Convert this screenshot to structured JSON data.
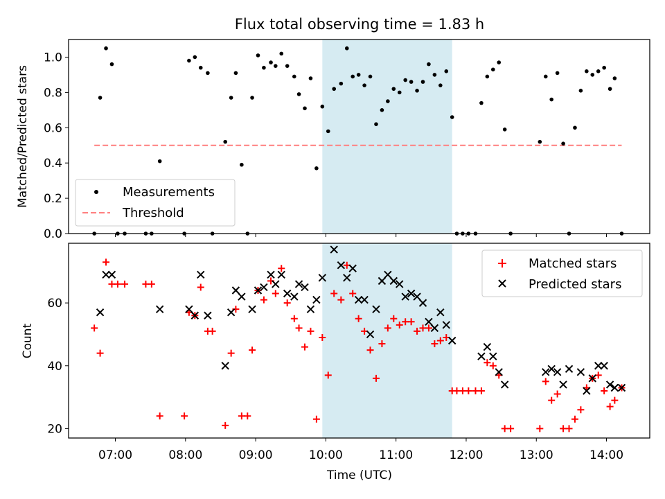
{
  "figure": {
    "title": "Flux total observing time = 1.83 h",
    "xlabel": "Time (UTC)",
    "shaded_span": {
      "start": "09:57",
      "end": "11:48",
      "color": "#add8e6"
    }
  },
  "chart_data": [
    {
      "type": "scatter",
      "panel": "top",
      "ylabel": "Matched/Predicted stars",
      "xlim": [
        "06:20",
        "14:37"
      ],
      "ylim": [
        0,
        1.1
      ],
      "yticks": [
        0.0,
        0.2,
        0.4,
        0.6,
        0.8,
        1.0
      ],
      "legend_position": "lower-left",
      "series": [
        {
          "name": "Measurements",
          "color": "#000000",
          "marker": "dot",
          "x": [
            "06:42",
            "06:47",
            "06:52",
            "06:57",
            "07:02",
            "07:08",
            "07:26",
            "07:31",
            "07:38",
            "07:59",
            "08:03",
            "08:08",
            "08:13",
            "08:19",
            "08:23",
            "08:34",
            "08:39",
            "08:43",
            "08:48",
            "08:53",
            "08:57",
            "09:02",
            "09:07",
            "09:13",
            "09:17",
            "09:22",
            "09:27",
            "09:33",
            "09:37",
            "09:42",
            "09:47",
            "09:52",
            "09:57",
            "10:02",
            "10:07",
            "10:13",
            "10:18",
            "10:23",
            "10:28",
            "10:33",
            "10:38",
            "10:43",
            "10:48",
            "10:53",
            "10:58",
            "11:03",
            "11:08",
            "11:13",
            "11:18",
            "11:23",
            "11:28",
            "11:33",
            "11:38",
            "11:43",
            "11:48",
            "11:52",
            "11:57",
            "12:02",
            "12:08",
            "12:13",
            "12:18",
            "12:23",
            "12:28",
            "12:33",
            "12:38",
            "13:03",
            "13:08",
            "13:13",
            "13:18",
            "13:23",
            "13:28",
            "13:33",
            "13:38",
            "13:43",
            "13:48",
            "13:53",
            "13:58",
            "14:03",
            "14:07",
            "14:13"
          ],
          "values": [
            0.0,
            0.77,
            1.05,
            0.96,
            0.0,
            0.0,
            0.0,
            0.0,
            0.41,
            0.0,
            0.98,
            1.0,
            0.94,
            0.91,
            0.0,
            0.52,
            0.77,
            0.91,
            0.39,
            0.0,
            0.77,
            1.01,
            0.94,
            0.97,
            0.95,
            1.02,
            0.95,
            0.89,
            0.79,
            0.71,
            0.88,
            0.37,
            0.72,
            0.58,
            0.82,
            0.85,
            1.05,
            0.89,
            0.9,
            0.84,
            0.89,
            0.62,
            0.7,
            0.75,
            0.82,
            0.8,
            0.87,
            0.86,
            0.81,
            0.86,
            0.96,
            0.9,
            0.84,
            0.92,
            0.66,
            0.0,
            0.0,
            0.0,
            0.0,
            0.74,
            0.89,
            0.93,
            0.97,
            0.59,
            0.0,
            0.52,
            0.89,
            0.76,
            0.91,
            0.51,
            0.0,
            0.6,
            0.81,
            0.92,
            0.9,
            0.92,
            0.94,
            0.82,
            0.88,
            0.0
          ]
        },
        {
          "name": "Threshold",
          "color": "#ff7f7f",
          "style": "dashed",
          "x": [
            "06:42",
            "14:13"
          ],
          "values": [
            0.5,
            0.5
          ]
        }
      ]
    },
    {
      "type": "scatter",
      "panel": "bottom",
      "ylabel": "Count",
      "xlim": [
        "06:20",
        "14:37"
      ],
      "ylim": [
        17,
        79
      ],
      "yticks": [
        20,
        40,
        60
      ],
      "xticks": [
        "07:00",
        "08:00",
        "09:00",
        "10:00",
        "11:00",
        "12:00",
        "13:00",
        "14:00"
      ],
      "legend_position": "upper-right",
      "series": [
        {
          "name": "Matched stars",
          "color": "#ff0000",
          "marker": "plus",
          "x": [
            "06:42",
            "06:47",
            "06:52",
            "06:57",
            "07:02",
            "07:08",
            "07:26",
            "07:31",
            "07:38",
            "07:59",
            "08:03",
            "08:08",
            "08:13",
            "08:19",
            "08:23",
            "08:34",
            "08:39",
            "08:43",
            "08:48",
            "08:53",
            "08:57",
            "09:02",
            "09:07",
            "09:13",
            "09:17",
            "09:22",
            "09:27",
            "09:33",
            "09:37",
            "09:42",
            "09:47",
            "09:52",
            "09:57",
            "10:02",
            "10:07",
            "10:13",
            "10:18",
            "10:23",
            "10:28",
            "10:33",
            "10:38",
            "10:43",
            "10:48",
            "10:53",
            "10:58",
            "11:03",
            "11:08",
            "11:13",
            "11:18",
            "11:23",
            "11:28",
            "11:33",
            "11:38",
            "11:43",
            "11:48",
            "11:52",
            "11:57",
            "12:02",
            "12:08",
            "12:13",
            "12:18",
            "12:23",
            "12:28",
            "12:33",
            "12:38",
            "13:03",
            "13:08",
            "13:13",
            "13:18",
            "13:23",
            "13:28",
            "13:33",
            "13:38",
            "13:43",
            "13:48",
            "13:53",
            "13:58",
            "14:03",
            "14:07",
            "14:13"
          ],
          "values": [
            52,
            44,
            73,
            66,
            66,
            66,
            66,
            66,
            24,
            24,
            57,
            56,
            65,
            51,
            51,
            21,
            44,
            58,
            24,
            24,
            45,
            64,
            61,
            67,
            63,
            71,
            60,
            55,
            52,
            46,
            51,
            23,
            49,
            37,
            63,
            61,
            72,
            63,
            55,
            51,
            45,
            36,
            47,
            52,
            55,
            53,
            54,
            54,
            51,
            52,
            52,
            47,
            48,
            49,
            32,
            32,
            32,
            32,
            32,
            32,
            41,
            40,
            37,
            20,
            20,
            20,
            35,
            29,
            31,
            20,
            20,
            23,
            26,
            33,
            36,
            37,
            32,
            27,
            29,
            33
          ]
        },
        {
          "name": "Predicted stars",
          "color": "#000000",
          "marker": "x",
          "x": [
            "06:47",
            "06:52",
            "06:57",
            "07:38",
            "08:03",
            "08:08",
            "08:13",
            "08:19",
            "08:34",
            "08:39",
            "08:43",
            "08:48",
            "08:57",
            "09:02",
            "09:07",
            "09:13",
            "09:17",
            "09:22",
            "09:27",
            "09:33",
            "09:37",
            "09:42",
            "09:47",
            "09:52",
            "09:57",
            "10:07",
            "10:13",
            "10:18",
            "10:23",
            "10:28",
            "10:33",
            "10:38",
            "10:43",
            "10:48",
            "10:53",
            "10:58",
            "11:03",
            "11:08",
            "11:13",
            "11:18",
            "11:23",
            "11:28",
            "11:33",
            "11:38",
            "11:43",
            "11:48",
            "12:13",
            "12:18",
            "12:23",
            "12:28",
            "12:33",
            "13:08",
            "13:13",
            "13:18",
            "13:23",
            "13:28",
            "13:38",
            "13:43",
            "13:48",
            "13:53",
            "13:58",
            "14:03",
            "14:07",
            "14:13"
          ],
          "values": [
            57,
            69,
            69,
            58,
            58,
            56,
            69,
            56,
            40,
            57,
            64,
            62,
            58,
            64,
            65,
            69,
            66,
            69,
            63,
            62,
            66,
            65,
            58,
            61,
            68,
            77,
            72,
            68,
            71,
            61,
            61,
            50,
            58,
            67,
            69,
            67,
            66,
            62,
            63,
            62,
            60,
            54,
            52,
            57,
            53,
            48,
            43,
            46,
            43,
            38,
            34,
            38,
            39,
            38,
            34,
            39,
            38,
            32,
            36,
            40,
            40,
            34,
            33,
            33
          ]
        }
      ]
    }
  ]
}
